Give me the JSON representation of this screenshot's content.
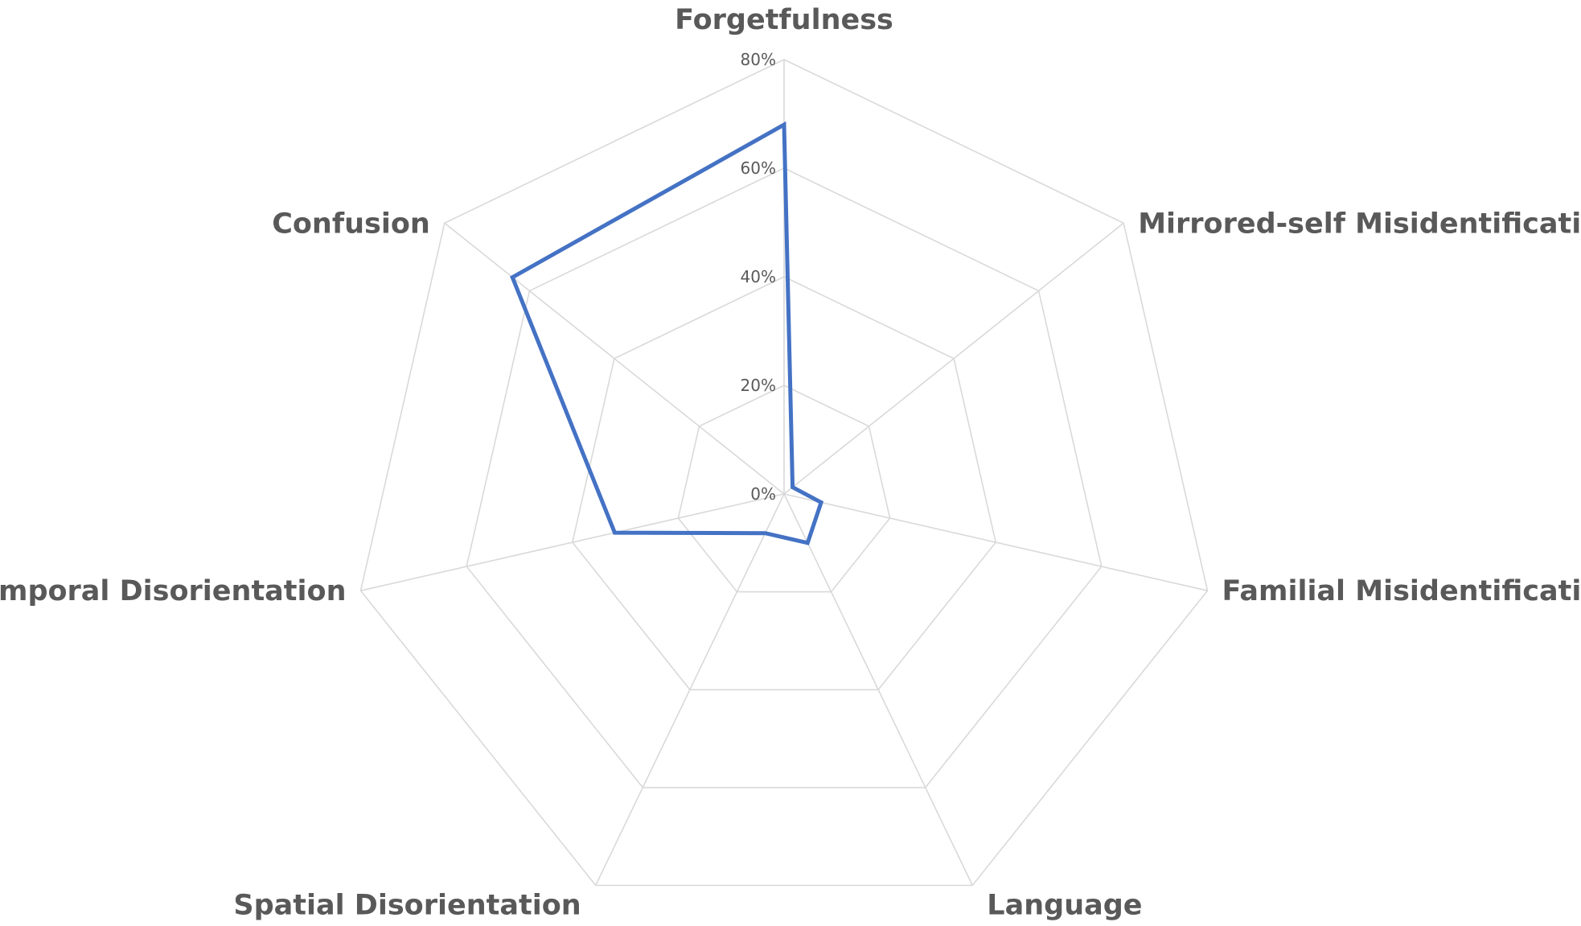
{
  "chart_data": {
    "type": "radar",
    "categories": [
      "Forgetfulness",
      "Mirrored-self Misidentification",
      "Familial Misidentification",
      "Language",
      "Spatial Disorientation",
      "Temporal Disorientation",
      "Confusion"
    ],
    "series": [
      {
        "values": [
          68,
          2,
          7,
          10,
          8,
          32,
          64
        ],
        "color": "#4472c4"
      }
    ],
    "r_ticks": [
      0,
      20,
      40,
      60,
      80
    ],
    "r_tick_labels": [
      "0%",
      "20%",
      "40%",
      "60%",
      "80%"
    ],
    "r_range": [
      0,
      80
    ],
    "grid": true,
    "legend": "none"
  }
}
